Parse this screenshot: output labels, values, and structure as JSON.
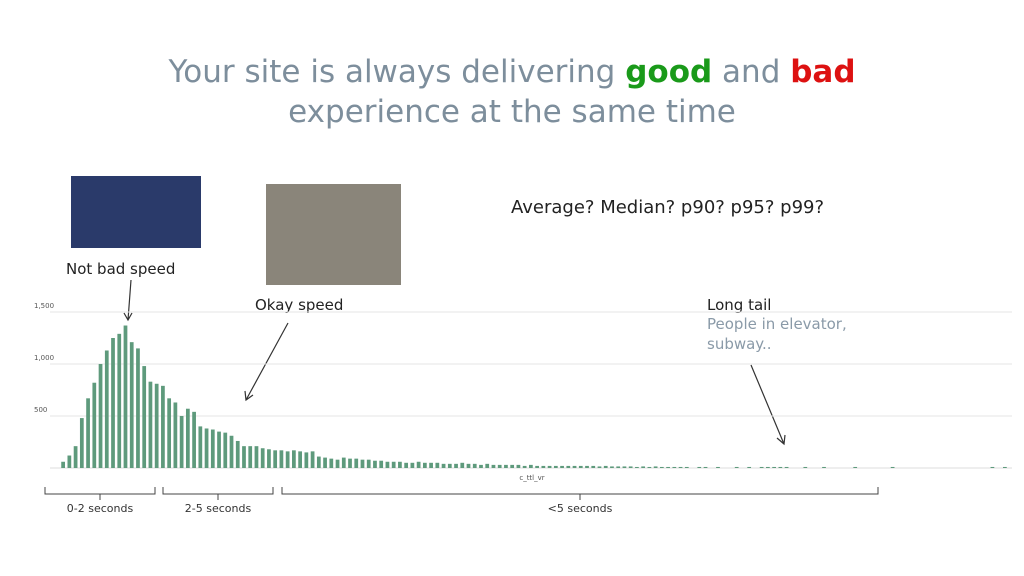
{
  "slide": {
    "title_parts": [
      "Your site is always delivering",
      "good",
      "and",
      "bad"
    ],
    "title_line2": "experience at the same time",
    "question": "Average? Median? p90? p95? p99?",
    "annotations": [
      "Not bad speed",
      "Okay speed",
      "Long tail",
      "People in elevator,",
      "subway.."
    ],
    "ranges": [
      "0-2 seconds",
      "2-5 seconds",
      "<5 seconds"
    ]
  },
  "chart_data": {
    "type": "bar",
    "x_label": "c_ttl_vr",
    "color": "#5e9a7c",
    "grid": true,
    "ylim": [
      0,
      1500
    ],
    "yticks": [
      {
        "value": 500,
        "label": "500"
      },
      {
        "value": 1000,
        "label": "1,000"
      },
      {
        "value": 1500,
        "label": "1,500"
      }
    ],
    "categories": [
      null,
      null,
      null,
      null,
      null,
      null,
      null,
      null,
      null,
      null,
      null,
      null,
      null,
      null,
      null,
      null,
      null,
      null,
      null,
      null,
      null,
      null,
      null,
      null,
      null,
      null,
      null,
      null,
      null,
      null,
      null,
      null,
      null,
      null,
      null,
      null,
      null,
      null,
      null,
      null,
      null,
      null,
      null,
      null,
      null,
      null,
      null,
      null,
      null,
      null,
      null,
      null,
      null,
      null,
      null,
      null,
      null,
      null,
      null,
      null,
      null,
      null,
      null,
      null,
      null,
      null,
      null,
      null,
      null,
      null,
      null,
      null,
      null,
      null,
      null,
      null,
      null,
      null,
      null,
      null,
      null,
      null,
      null,
      null,
      null,
      null,
      null,
      null,
      null,
      null,
      null,
      null,
      null,
      null,
      null,
      null,
      null,
      null,
      null,
      null,
      null,
      null,
      null,
      null,
      null,
      null,
      null,
      null,
      null,
      null,
      null,
      null,
      null,
      null,
      null,
      null,
      null,
      null,
      null,
      null,
      null,
      null,
      null,
      null,
      null,
      null,
      null,
      null,
      null,
      null,
      null,
      null,
      null,
      null,
      null,
      null,
      null,
      null,
      null,
      null,
      null,
      null,
      null,
      null,
      null,
      null,
      null,
      null,
      null,
      null,
      null,
      null
    ],
    "values": [
      60,
      120,
      210,
      480,
      670,
      820,
      1000,
      1130,
      1250,
      1290,
      1370,
      1210,
      1150,
      980,
      830,
      810,
      790,
      670,
      630,
      500,
      570,
      540,
      400,
      380,
      370,
      350,
      340,
      310,
      260,
      210,
      210,
      210,
      190,
      180,
      170,
      170,
      160,
      170,
      160,
      150,
      160,
      110,
      100,
      90,
      80,
      100,
      90,
      90,
      80,
      80,
      70,
      70,
      60,
      60,
      60,
      50,
      50,
      60,
      50,
      50,
      50,
      40,
      40,
      40,
      50,
      40,
      40,
      30,
      40,
      30,
      30,
      30,
      30,
      30,
      20,
      30,
      20,
      20,
      20,
      20,
      20,
      20,
      20,
      20,
      20,
      20,
      15,
      20,
      15,
      15,
      15,
      15,
      10,
      15,
      10,
      15,
      10,
      10,
      10,
      10,
      10,
      0,
      10,
      10,
      0,
      10,
      0,
      0,
      10,
      0,
      10,
      0,
      10,
      10,
      10,
      10,
      10,
      0,
      0,
      10,
      0,
      0,
      10,
      0,
      0,
      0,
      0,
      10,
      0,
      0,
      0,
      0,
      0,
      10,
      0,
      0,
      0,
      0,
      0,
      0,
      0,
      0,
      0,
      0,
      0,
      0,
      0,
      0,
      0,
      10,
      0,
      10
    ]
  }
}
